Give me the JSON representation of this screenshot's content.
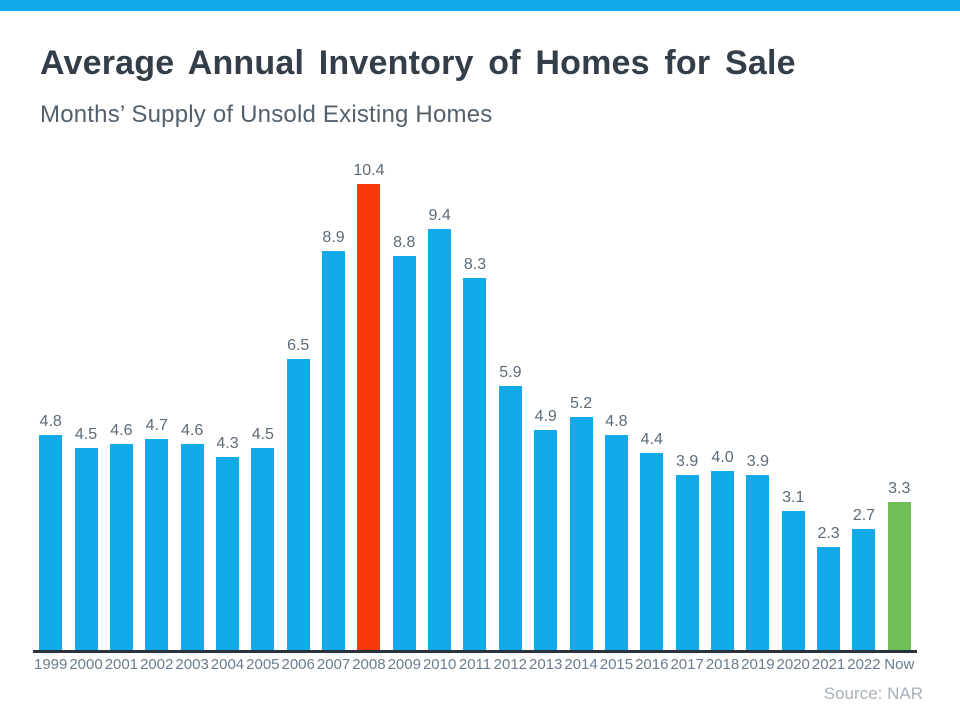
{
  "header": {
    "title": "Average Annual Inventory of Homes for Sale",
    "subtitle": "Months’ Supply of Unsold Existing Homes"
  },
  "footer": {
    "source": "Source: NAR"
  },
  "theme": {
    "accent_bar_color": "#12A9E8",
    "title_color": "#333E48",
    "subtitle_color": "#54616C",
    "value_label_color": "#5C6B78",
    "tick_label_color": "#6B7C8F",
    "axis_color": "#2A333C",
    "source_color": "#A9B0BA"
  },
  "chart_data": {
    "type": "bar",
    "title": "Average Annual Inventory of Homes for Sale",
    "subtitle": "Months’ Supply of Unsold Existing Homes",
    "categories": [
      "1999",
      "2000",
      "2001",
      "2002",
      "2003",
      "2004",
      "2005",
      "2006",
      "2007",
      "2008",
      "2009",
      "2010",
      "2011",
      "2012",
      "2013",
      "2014",
      "2015",
      "2016",
      "2017",
      "2018",
      "2019",
      "2020",
      "2021",
      "2022",
      "Now"
    ],
    "values": [
      4.8,
      4.5,
      4.6,
      4.7,
      4.6,
      4.3,
      4.5,
      6.5,
      8.9,
      10.4,
      8.8,
      9.4,
      8.3,
      5.9,
      4.9,
      5.2,
      4.8,
      4.4,
      3.9,
      4.0,
      3.9,
      3.1,
      2.3,
      2.7,
      3.3
    ],
    "value_labels": [
      "4.8",
      "4.5",
      "4.6",
      "4.7",
      "4.6",
      "4.3",
      "4.5",
      "6.5",
      "8.9",
      "10.4",
      "8.8",
      "9.4",
      "8.3",
      "5.9",
      "4.9",
      "5.2",
      "4.8",
      "4.4",
      "3.9",
      "4.0",
      "3.9",
      "3.1",
      "2.3",
      "2.7",
      "3.3"
    ],
    "bar_color_default": "#12A9E8",
    "bar_color_overrides": {
      "2008": "#F8380B",
      "Now": "#6FBE59"
    },
    "ylim": [
      0,
      10.4
    ],
    "grid": false,
    "legend": false,
    "data_labels": true,
    "xlabel": "",
    "ylabel": "",
    "source": "Source: NAR"
  }
}
